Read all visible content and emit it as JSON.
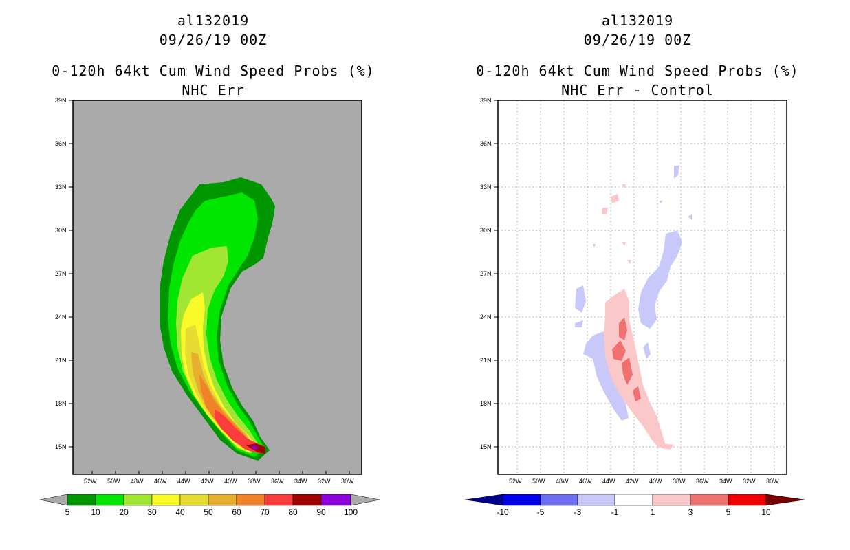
{
  "left_panel": {
    "title_line1": "al132019",
    "title_line2": "09/26/19 00Z",
    "title_line3": "0-120h 64kt Cum Wind Speed Probs (%)",
    "title_line4": "NHC Err",
    "colorbar_labels": [
      "5",
      "10",
      "20",
      "30",
      "40",
      "50",
      "60",
      "70",
      "80",
      "90",
      "100"
    ],
    "colorbar_colors": [
      "#009600",
      "#00e600",
      "#a0e632",
      "#fafa28",
      "#e6dc32",
      "#e6af2d",
      "#f08228",
      "#fa3c3c",
      "#a00000",
      "#8c00dc"
    ]
  },
  "right_panel": {
    "title_line1": "al132019",
    "title_line2": "09/26/19 00Z",
    "title_line3": "0-120h 64kt Cum Wind Speed Probs (%)",
    "title_line4": "NHC Err - Control",
    "colorbar_labels": [
      "-10",
      "-5",
      "-3",
      "-1",
      "1",
      "3",
      "5",
      "10"
    ],
    "colorbar_colors": [
      "#0000e6",
      "#6e6ef0",
      "#c8c8fa",
      "#ffffff",
      "#fac8c8",
      "#f07070",
      "#f00000"
    ]
  },
  "axes": {
    "lat_labels": [
      "39N",
      "36N",
      "33N",
      "30N",
      "27N",
      "24N",
      "21N",
      "18N",
      "15N"
    ],
    "lon_labels": [
      "52W",
      "50W",
      "48W",
      "46W",
      "44W",
      "42W",
      "40W",
      "38W",
      "36W",
      "34W",
      "32W",
      "30W"
    ]
  },
  "colors": {
    "land_gray": "#aaaaaa",
    "neg_light": "#c8c8fa",
    "pos_light": "#fac8c8",
    "pos_mid": "#f07070"
  }
}
